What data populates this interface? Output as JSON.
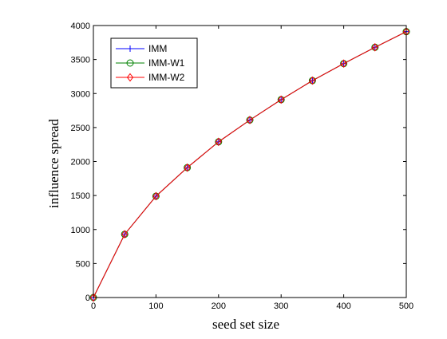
{
  "chart_data": {
    "type": "line",
    "title": "",
    "xlabel": "seed set size",
    "ylabel": "influence spread",
    "x": [
      0,
      50,
      100,
      150,
      200,
      250,
      300,
      350,
      400,
      450,
      500
    ],
    "xlim": [
      0,
      500
    ],
    "ylim": [
      0,
      4000
    ],
    "xticks": [
      0,
      100,
      200,
      300,
      400,
      500
    ],
    "yticks": [
      0,
      500,
      1000,
      1500,
      2000,
      2500,
      3000,
      3500,
      4000
    ],
    "grid": false,
    "legend_position": "top-left",
    "series": [
      {
        "name": "IMM",
        "color": "#0000ff",
        "marker": "plus",
        "values": [
          0,
          930,
          1490,
          1910,
          2290,
          2610,
          2910,
          3190,
          3440,
          3680,
          3910
        ]
      },
      {
        "name": "IMM-W1",
        "color": "#008000",
        "marker": "circle",
        "values": [
          0,
          930,
          1490,
          1910,
          2290,
          2610,
          2910,
          3190,
          3440,
          3680,
          3910
        ]
      },
      {
        "name": "IMM-W2",
        "color": "#ff0000",
        "marker": "diamond",
        "values": [
          0,
          930,
          1490,
          1910,
          2290,
          2610,
          2910,
          3190,
          3440,
          3680,
          3910
        ]
      }
    ]
  }
}
